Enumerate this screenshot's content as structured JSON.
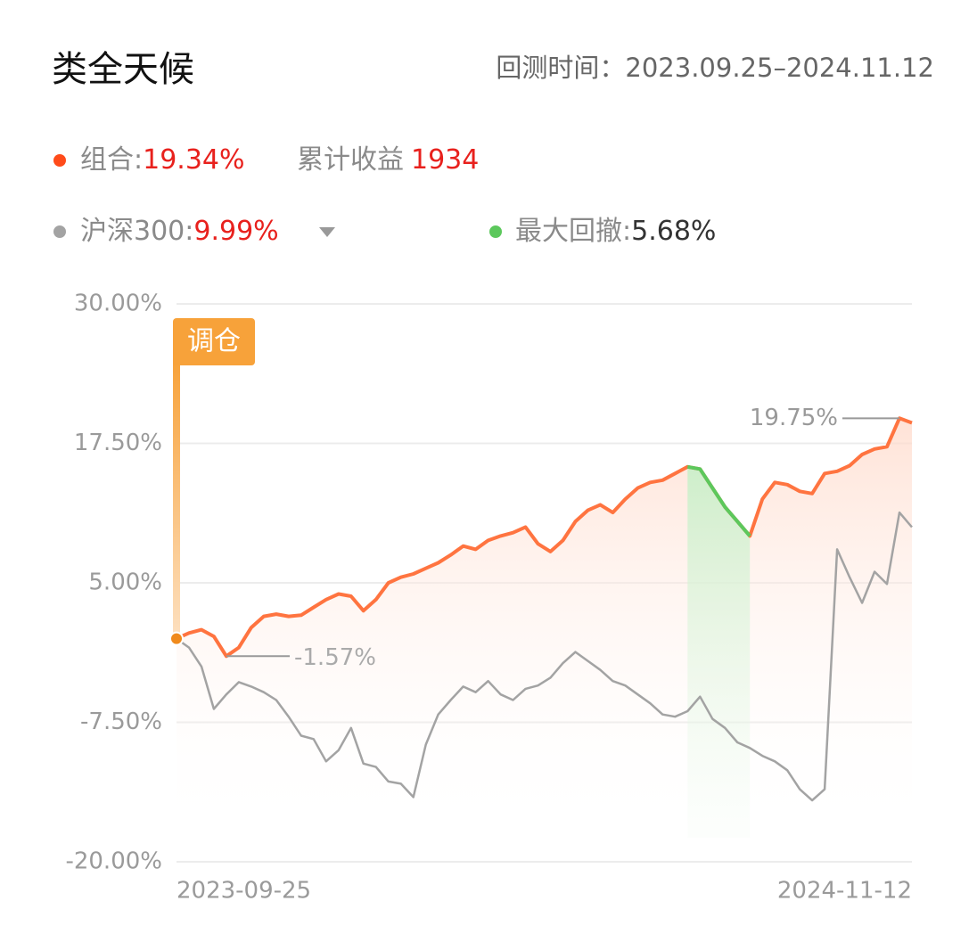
{
  "header": {
    "title": "类全天候",
    "period": "回测时间：2023.09.25–2024.11.12"
  },
  "chart_data": {
    "type": "line",
    "legend_separator": ":",
    "categories": [
      "2023-09-25",
      null,
      null,
      null,
      null,
      null,
      null,
      null,
      null,
      null,
      null,
      null,
      null,
      null,
      null,
      null,
      null,
      null,
      null,
      null,
      null,
      null,
      null,
      null,
      null,
      null,
      null,
      null,
      null,
      null,
      null,
      null,
      null,
      null,
      null,
      null,
      null,
      null,
      null,
      null,
      null,
      null,
      null,
      null,
      null,
      null,
      null,
      null,
      null,
      null,
      null,
      null,
      null,
      null,
      null,
      null,
      null,
      null,
      null,
      "2024-11-12"
    ],
    "series": [
      {
        "name": "组合",
        "color": "#ff7440",
        "dot_color": "#ff4b1a",
        "total_return": 19.34,
        "total_return_label": "19.34%",
        "profit_label": "累计收益",
        "profit": 1934,
        "values": [
          0,
          0.5,
          0.8,
          0.2,
          -1.57,
          -0.8,
          1.0,
          2.0,
          2.2,
          2.0,
          2.1,
          2.8,
          3.5,
          4.0,
          3.8,
          2.5,
          3.5,
          5.0,
          5.5,
          5.8,
          6.3,
          6.8,
          7.5,
          8.3,
          8.0,
          8.8,
          9.2,
          9.5,
          10.0,
          8.5,
          7.8,
          8.8,
          10.5,
          11.5,
          12.0,
          11.3,
          12.5,
          13.5,
          14.0,
          14.2,
          14.8,
          15.4,
          15.2,
          13.5,
          11.8,
          10.5,
          9.2,
          12.5,
          14.0,
          13.8,
          13.2,
          13.0,
          14.8,
          15.0,
          15.5,
          16.5,
          17.0,
          17.2,
          19.75,
          19.34
        ]
      },
      {
        "name": "沪深300",
        "color": "#a3a3a3",
        "dot_color": "#a3a3a3",
        "total_return": 9.99,
        "total_return_label": "9.99%",
        "values": [
          0,
          -0.8,
          -2.5,
          -6.3,
          -5.0,
          -3.9,
          -4.3,
          -4.8,
          -5.5,
          -7.0,
          -8.7,
          -9.0,
          -11.0,
          -10.0,
          -8.0,
          -11.2,
          -11.5,
          -12.8,
          -13.0,
          -14.2,
          -9.5,
          -6.8,
          -5.5,
          -4.3,
          -4.8,
          -3.8,
          -5.0,
          -5.5,
          -4.5,
          -4.2,
          -3.5,
          -2.2,
          -1.2,
          -2.0,
          -2.8,
          -3.8,
          -4.2,
          -5.0,
          -5.8,
          -6.8,
          -7.0,
          -6.5,
          -5.2,
          -7.2,
          -8.0,
          -9.3,
          -9.8,
          -10.5,
          -11.0,
          -11.8,
          -13.5,
          -14.5,
          -13.5,
          8.0,
          5.5,
          3.2,
          6.0,
          4.9,
          11.3,
          9.99
        ]
      }
    ],
    "drawdown": {
      "label": "最大回撤",
      "value": 5.68,
      "value_label": "5.68%",
      "color": "#5cc85c"
    },
    "max_label": {
      "value": 19.75,
      "label": "19.75%"
    },
    "min_label": {
      "value": -1.57,
      "label": "-1.57%"
    },
    "rebalance_label": "调仓",
    "ylim": [
      -20,
      30
    ],
    "yticks": [
      {
        "value": -20,
        "label": "-20.00%"
      },
      {
        "value": -7.5,
        "label": "-7.50%"
      },
      {
        "value": 5,
        "label": "5.00%"
      },
      {
        "value": 17.5,
        "label": "17.50%"
      },
      {
        "value": 30,
        "label": "30.00%"
      }
    ],
    "grid": true
  }
}
